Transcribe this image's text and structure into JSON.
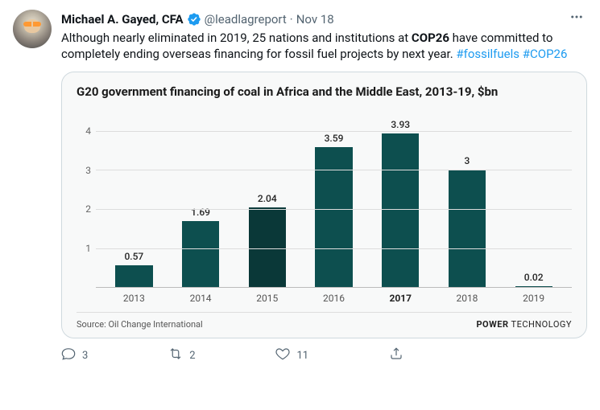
{
  "author": {
    "display_name": "Michael A. Gayed, CFA",
    "handle": "@leadlagreport",
    "date": "Nov 18"
  },
  "tweet": {
    "text_pre": "Although nearly eliminated in 2019, 25 nations and institutions at ",
    "bold": "COP26",
    "text_post": " have committed to completely ending overseas financing for fossil fuel projects by next year. ",
    "hashtag1": "#fossilfuels",
    "hashtag2": "#COP26"
  },
  "chart": {
    "title": "G20 government financing of coal in Africa and the Middle East, 2013-19, $bn",
    "source": "Source: Oil Change International",
    "brand_bold": "POWER",
    "brand_light": " TECHNOLOGY",
    "ymax": 4.5,
    "yticks": [
      1,
      2,
      3,
      4
    ],
    "categories": [
      "2013",
      "2014",
      "2015",
      "2016",
      "2017",
      "2018",
      "2019"
    ],
    "values": [
      0.57,
      1.69,
      2.04,
      3.59,
      3.93,
      3,
      0.02
    ],
    "value_labels": [
      "0.57",
      "1.69",
      "2.04",
      "3.59",
      "3.93",
      "3",
      "0.02"
    ],
    "bar_colors": [
      "#0d4f4f",
      "#0d4f4f",
      "#0a3838",
      "#0d4f4f",
      "#0d4f4f",
      "#0d4f4f",
      "#0d4f4f"
    ],
    "bold_category_index": 4,
    "background_color": "#f8f9f9",
    "grid_color": "#dddddd"
  },
  "actions": {
    "replies": "3",
    "retweets": "2",
    "likes": "11"
  }
}
